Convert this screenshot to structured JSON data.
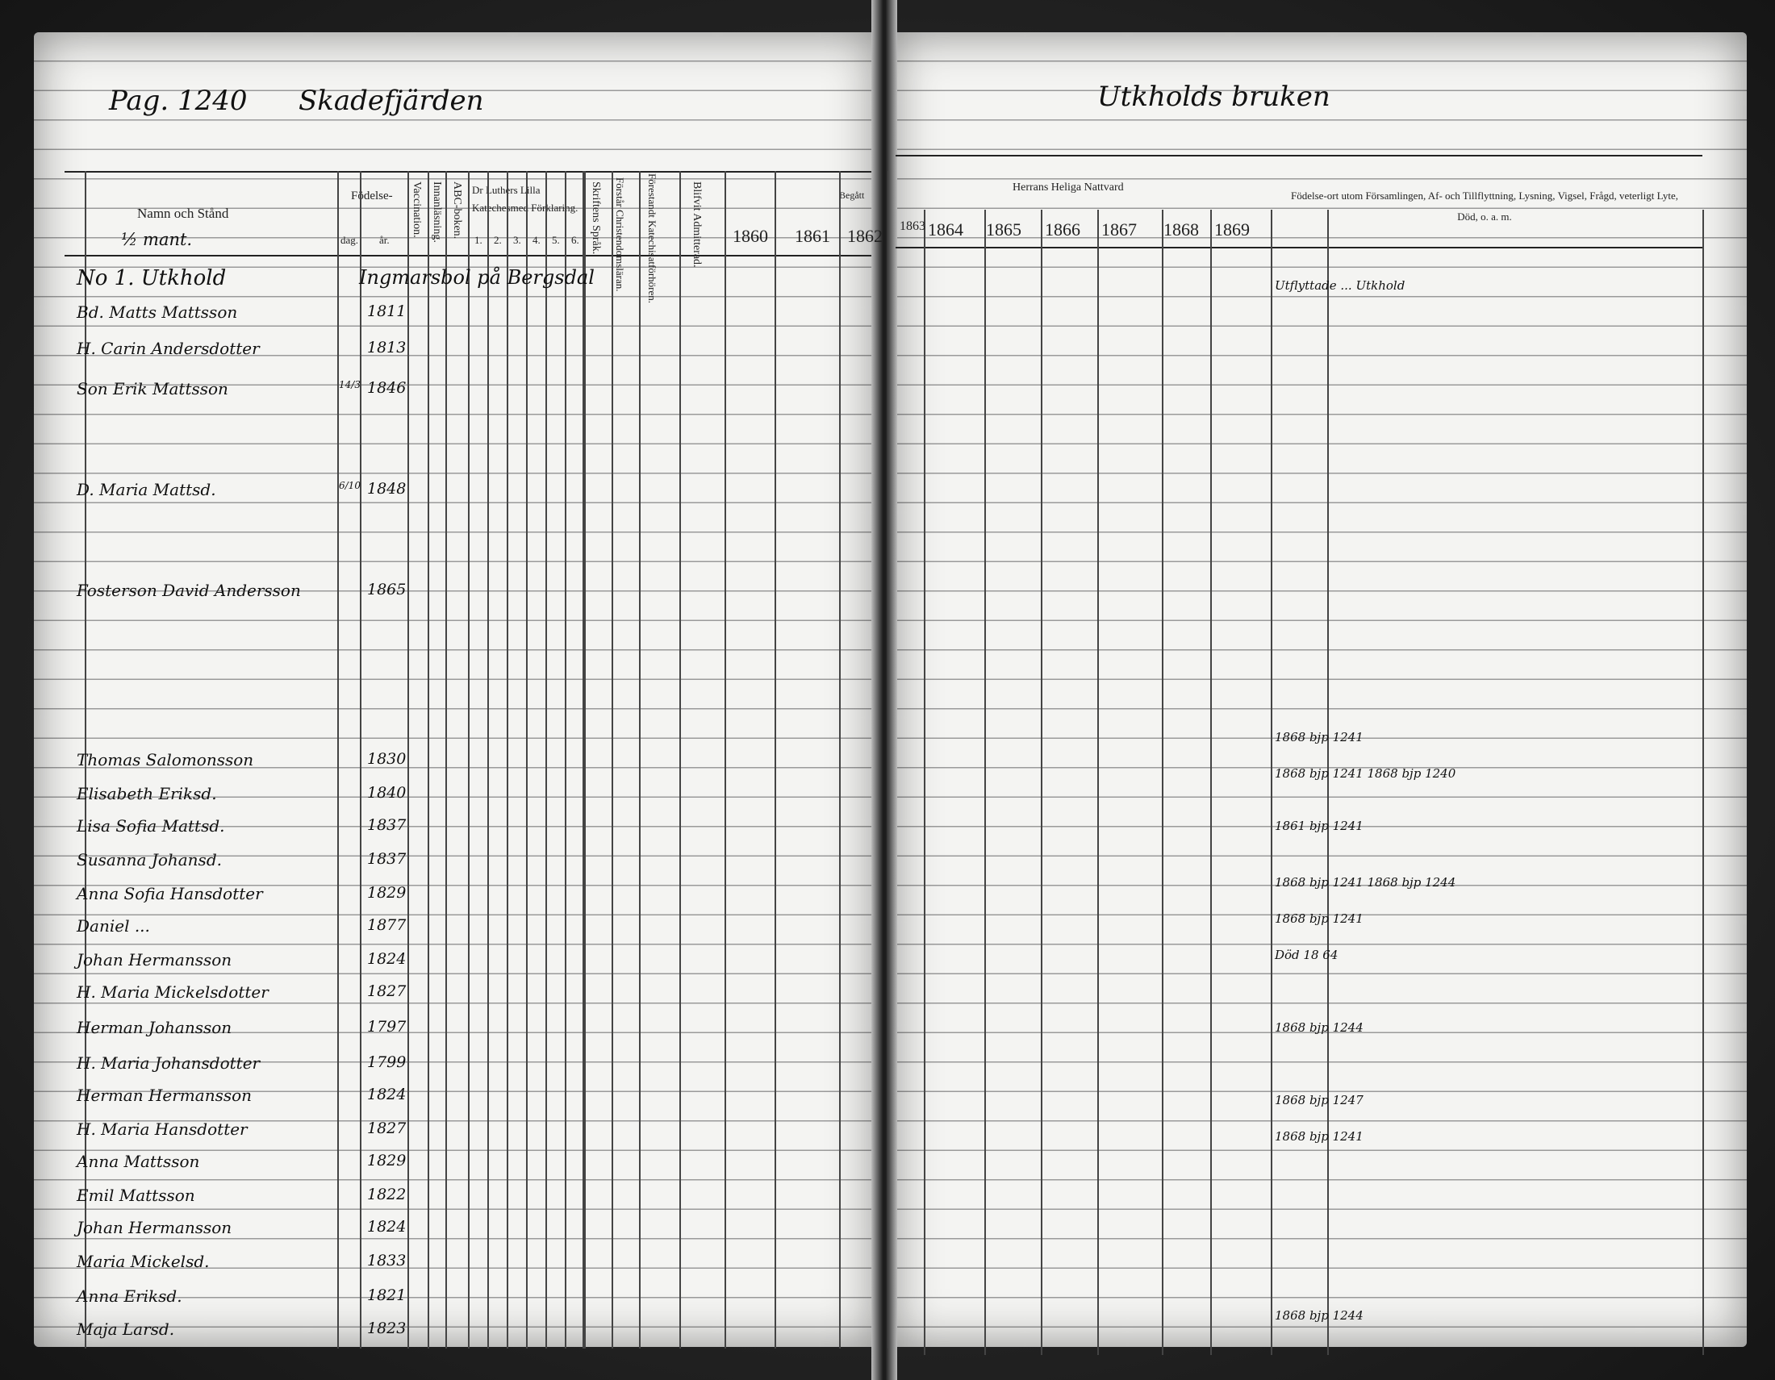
{
  "left_page": {
    "page_ref": "Pag. 1240",
    "place_heading": "Skadefjärden",
    "headers": {
      "name": "Namn och Stånd",
      "birth": "Födelse-",
      "day": "dag.",
      "year": "år.",
      "vaccination": "Vaccination.",
      "reading": "Innanläsning.",
      "abc": "ABC-boken.",
      "catechism": "Dr Luthers Lilla Katechesmed Förklaring.",
      "catechism_parts": [
        "1.",
        "2.",
        "3.",
        "4.",
        "5.",
        "6."
      ],
      "scripture": "Skriftens Språk.",
      "understanding": "Förstår Christendomsläran.",
      "confirmed": "Förestandt Katechisatförhören.",
      "admitted": "Blifvit Admitterad.",
      "exams": "Begått",
      "exam_years": [
        "1860",
        "1861",
        "1862"
      ]
    },
    "section_note": "½ mant.",
    "rows": [
      {
        "name": "No 1. Utkhold",
        "day": "",
        "year": "Ingmarsbol på Bergsdal"
      },
      {
        "name": "Bd. Matts Mattsson",
        "day": "",
        "year": "1811"
      },
      {
        "name": "H. Carin Andersdotter",
        "day": "",
        "year": "1813"
      },
      {
        "name": "Son Erik Mattsson",
        "day": "14/3",
        "year": "1846"
      },
      {
        "name": "D. Maria Mattsd.",
        "day": "6/10",
        "year": "1848"
      },
      {
        "name": "Fosterson David Andersson",
        "day": "",
        "year": "1865"
      },
      {
        "name": "Thomas Salomonsson",
        "day": "",
        "year": "1830"
      },
      {
        "name": "Elisabeth Eriksd.",
        "day": "",
        "year": "1840"
      },
      {
        "name": "Lisa Sofia Mattsd.",
        "day": "",
        "year": "1837"
      },
      {
        "name": "Susanna Johansd.",
        "day": "",
        "year": "1837"
      },
      {
        "name": "Anna Sofia Hansdotter",
        "day": "",
        "year": "1829"
      },
      {
        "name": "Daniel ...",
        "day": "",
        "year": "1877"
      },
      {
        "name": "Johan Hermansson",
        "day": "",
        "year": "1824"
      },
      {
        "name": "H. Maria Mickelsdotter",
        "day": "",
        "year": "1827"
      },
      {
        "name": "Herman Johansson",
        "day": "",
        "year": "1797"
      },
      {
        "name": "H. Maria Johansdotter",
        "day": "",
        "year": "1799"
      },
      {
        "name": "Herman Hermansson",
        "day": "",
        "year": "1824"
      },
      {
        "name": "H. Maria Hansdotter",
        "day": "",
        "year": "1827"
      },
      {
        "name": "Anna Mattsson",
        "day": "",
        "year": "1829"
      },
      {
        "name": "Emil Mattsson",
        "day": "",
        "year": "1822"
      },
      {
        "name": "Johan Hermansson",
        "day": "",
        "year": "1824"
      },
      {
        "name": "Maria Mickelsd.",
        "day": "",
        "year": "1833"
      },
      {
        "name": "Anna Eriksd.",
        "day": "",
        "year": "1821"
      },
      {
        "name": "Maja Larsd.",
        "day": "",
        "year": "1823"
      }
    ]
  },
  "right_page": {
    "place_heading": "Utkholds bruken",
    "communion_header": "Herrans Heliga Nattvard",
    "communion_years": [
      "1863",
      "1864",
      "1865",
      "1866",
      "1867",
      "1868",
      "1869"
    ],
    "remarks_header": "Födelse-ort utom Församlingen, Af- och Tillflyttning, Lysning, Vigsel, Frågd, veterligt Lyte, Död, o. a. m.",
    "remarks": [
      {
        "row": 0,
        "text": "Utflyttade ... Utkhold"
      },
      {
        "row": 12,
        "text": "1868 bjp 1241"
      },
      {
        "row": 13,
        "text": "1868 bjp 1241 1868 bjp 1240"
      },
      {
        "row": 15,
        "text": "1861 bjp 1241"
      },
      {
        "row": 16,
        "text": "1868 bjp 1241 1868 bjp 1244"
      },
      {
        "row": 17,
        "text": "1868 bjp 1241"
      },
      {
        "row": 19,
        "text": "Död 18 64"
      },
      {
        "row": 21,
        "text": "1868 bjp 1244"
      },
      {
        "row": 23,
        "text": "1868 bjp 1247"
      },
      {
        "row": 25,
        "text": "1868 bjp 1241"
      },
      {
        "row": 28,
        "text": "1868 bjp 1244"
      }
    ]
  }
}
